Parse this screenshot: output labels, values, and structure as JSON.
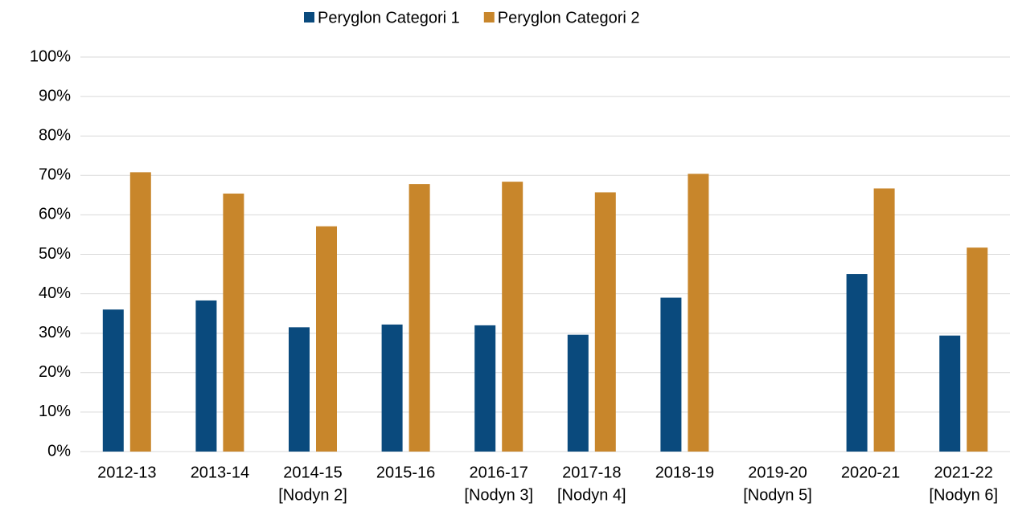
{
  "chart_data": {
    "type": "bar",
    "categories": [
      [
        "2012-13"
      ],
      [
        "2013-14"
      ],
      [
        "2014-15",
        "[Nodyn 2]"
      ],
      [
        "2015-16"
      ],
      [
        "2016-17",
        "[Nodyn 3]"
      ],
      [
        "2017-18",
        "[Nodyn 4]"
      ],
      [
        "2018-19"
      ],
      [
        "2019-20",
        "[Nodyn 5]"
      ],
      [
        "2020-21"
      ],
      [
        "2021-22",
        "[Nodyn 6]"
      ]
    ],
    "series": [
      {
        "name": "Peryglon Categori 1",
        "color": "#0a4a7d",
        "values": [
          36,
          38.3,
          31.5,
          32.2,
          32,
          29.6,
          39,
          null,
          45,
          29.4
        ]
      },
      {
        "name": "Peryglon Categori 2",
        "color": "#c8862b",
        "values": [
          70.8,
          65.4,
          57.1,
          67.8,
          68.4,
          65.7,
          70.4,
          null,
          66.7,
          51.7
        ]
      }
    ],
    "ylim": [
      0,
      100
    ],
    "yticks": [
      {
        "value": 0,
        "label": "0%"
      },
      {
        "value": 10,
        "label": "10%"
      },
      {
        "value": 20,
        "label": "20%"
      },
      {
        "value": 30,
        "label": "30%"
      },
      {
        "value": 40,
        "label": "40%"
      },
      {
        "value": 50,
        "label": "50%"
      },
      {
        "value": 60,
        "label": "60%"
      },
      {
        "value": 70,
        "label": "70%"
      },
      {
        "value": 80,
        "label": "80%"
      },
      {
        "value": 90,
        "label": "90%"
      },
      {
        "value": 100,
        "label": "100%"
      }
    ],
    "grid": true,
    "legend": "top"
  }
}
